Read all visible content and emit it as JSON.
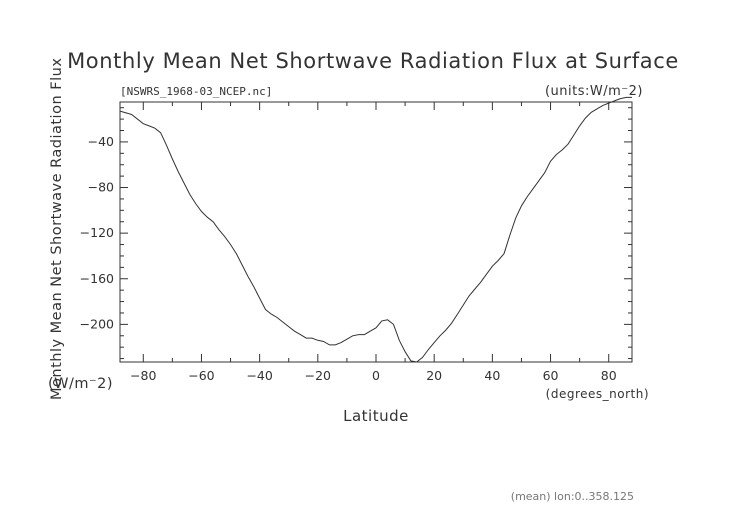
{
  "chart_data": {
    "type": "line",
    "title": "Monthly Mean Net Shortwave Radiation Flux at Surface",
    "subtitle": "[NSWRS_1968-03_NCEP.nc]",
    "units_label": "(units:W/m⁻2)",
    "ylabel": "Monthly Mean Net Shortwave Radiation Flux",
    "ylabel_units": "(W/m⁻2)",
    "xlabel": "Latitude",
    "xlabel_units": "(degrees_north)",
    "footnote": "(mean) lon:0..358.125",
    "xlim": [
      -88,
      88
    ],
    "ylim": [
      -233,
      -5
    ],
    "x_ticks": [
      -80,
      -60,
      -40,
      -20,
      0,
      20,
      40,
      60,
      80
    ],
    "y_ticks": [
      -40,
      -80,
      -120,
      -160,
      -200
    ],
    "grid": false,
    "series": [
      {
        "x": [
          -88,
          -84,
          -80,
          -78,
          -76,
          -74,
          -72,
          -70,
          -68,
          -66,
          -64,
          -62,
          -60,
          -58,
          -56,
          -54,
          -52,
          -50,
          -48,
          -46,
          -44,
          -42,
          -40,
          -38,
          -36,
          -34,
          -32,
          -30,
          -28,
          -26,
          -24,
          -22,
          -20,
          -18,
          -16,
          -14,
          -12,
          -10,
          -8,
          -6,
          -4,
          -2,
          0,
          2,
          4,
          6,
          8,
          10,
          12,
          14,
          16,
          18,
          20,
          22,
          24,
          26,
          28,
          30,
          32,
          34,
          36,
          38,
          40,
          42,
          44,
          46,
          48,
          50,
          52,
          54,
          56,
          58,
          60,
          62,
          64,
          66,
          68,
          70,
          72,
          74,
          76,
          78,
          80,
          82,
          84,
          86,
          88
        ],
        "y": [
          -13,
          -16,
          -24,
          -26,
          -28,
          -32,
          -43,
          -55,
          -66,
          -76,
          -86,
          -94,
          -101,
          -106,
          -110,
          -117,
          -123,
          -130,
          -138,
          -148,
          -158,
          -167,
          -177,
          -187,
          -191,
          -194,
          -198,
          -202,
          -206,
          -209,
          -212,
          -212,
          -214,
          -215,
          -218,
          -218,
          -216,
          -213,
          -210,
          -209,
          -209,
          -206,
          -203,
          -197,
          -196,
          -200,
          -214,
          -224,
          -232,
          -233,
          -229,
          -222,
          -216,
          -210,
          -205,
          -199,
          -191,
          -183,
          -175,
          -169,
          -163,
          -156,
          -149,
          -144,
          -138,
          -122,
          -107,
          -96,
          -88,
          -81,
          -74,
          -67,
          -57,
          -51,
          -47,
          -42,
          -34,
          -26,
          -19,
          -14,
          -11,
          -8,
          -6,
          -4,
          -2,
          -1,
          -1
        ]
      }
    ]
  }
}
